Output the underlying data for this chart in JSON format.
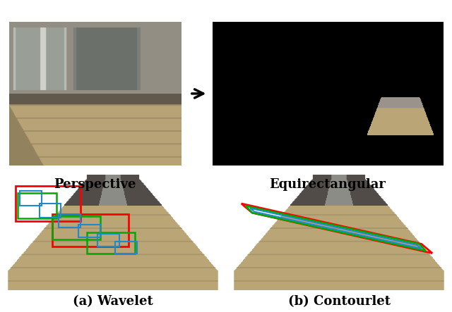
{
  "label_perspective": "Perspective",
  "label_equirectangular": "Equirectangular",
  "label_wavelet": "(a) Wavelet",
  "label_contourlet": "(b) Contourlet",
  "label_fontsize": 13,
  "fig_bg": "#ffffff",
  "persp_floor_color": [
    0.72,
    0.64,
    0.46
  ],
  "persp_wall_color": [
    0.52,
    0.52,
    0.5
  ],
  "equi_bg": [
    0.0,
    0.0,
    0.0
  ],
  "scene_tan": [
    0.73,
    0.65,
    0.47
  ],
  "scene_dark": [
    0.32,
    0.3,
    0.28
  ],
  "scene_metal": [
    0.55,
    0.55,
    0.53
  ]
}
